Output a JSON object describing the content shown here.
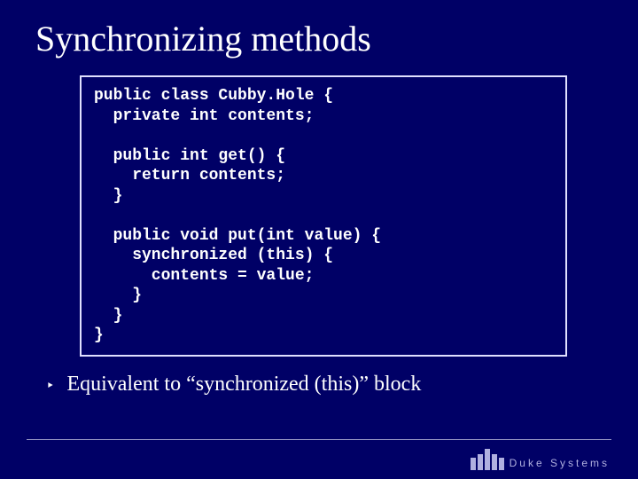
{
  "slide": {
    "background_color": "#000066",
    "text_color": "#ffffff",
    "title": "Synchronizing methods",
    "title_fontsize": 40,
    "code_box": {
      "border_color": "#e0e0ff",
      "font_family": "Courier New",
      "font_weight": "bold",
      "font_size": 18,
      "code": "public class Cubby.Hole {\n  private int contents;\n\n  public int get() {\n    return contents;\n  }\n\n  public void put(int value) {\n    synchronized (this) {\n      contents = value;\n    }\n  }\n}"
    },
    "bullet": {
      "marker": "‣",
      "text": "Equivalent to “synchronized (this)” block",
      "fontsize": 24
    },
    "footer": {
      "line_color": "#9090c0",
      "logo_color": "#b0b0e0",
      "logo_text": "Duke Systems"
    }
  }
}
